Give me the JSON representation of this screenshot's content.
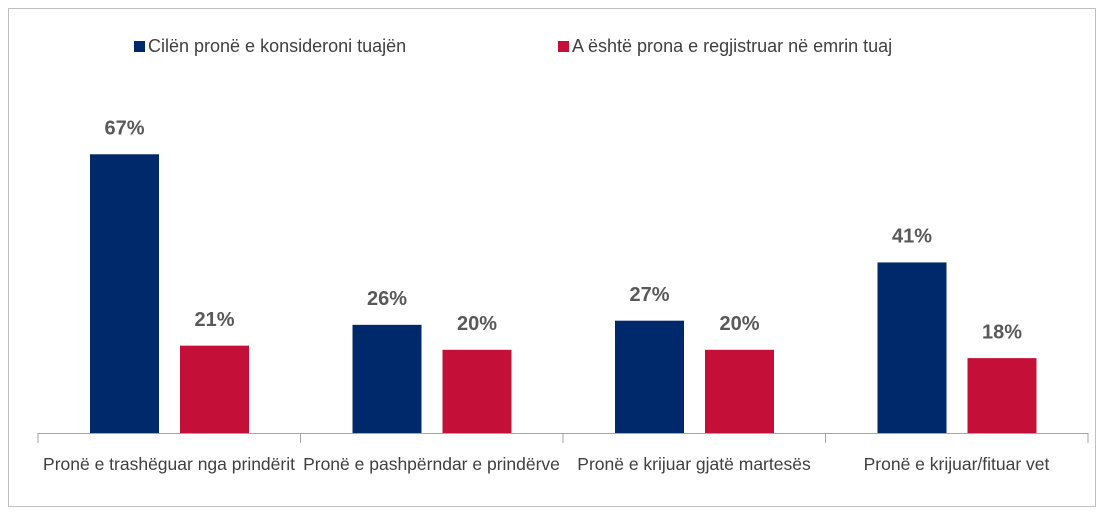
{
  "chart_data": {
    "type": "bar",
    "categories": [
      "Pronë e trashëguar nga prindërit",
      "Pronë e pashpërndar e prindërve",
      "Pronë e krijuar gjatë martesës",
      "Pronë e krijuar/fituar vet"
    ],
    "series": [
      {
        "name": "Cilën pronë e konsideroni tuajën",
        "color": "#00296b",
        "values": [
          67,
          26,
          27,
          41
        ],
        "value_labels": [
          "67%",
          "26%",
          "27%",
          "41%"
        ]
      },
      {
        "name": "A është prona e regjistruar në emrin tuaj",
        "color": "#c41039",
        "values": [
          21,
          20,
          20,
          18
        ],
        "value_labels": [
          "21%",
          "20%",
          "20%",
          "18%"
        ]
      }
    ],
    "ylim": [
      0,
      100
    ],
    "legend": "top"
  }
}
